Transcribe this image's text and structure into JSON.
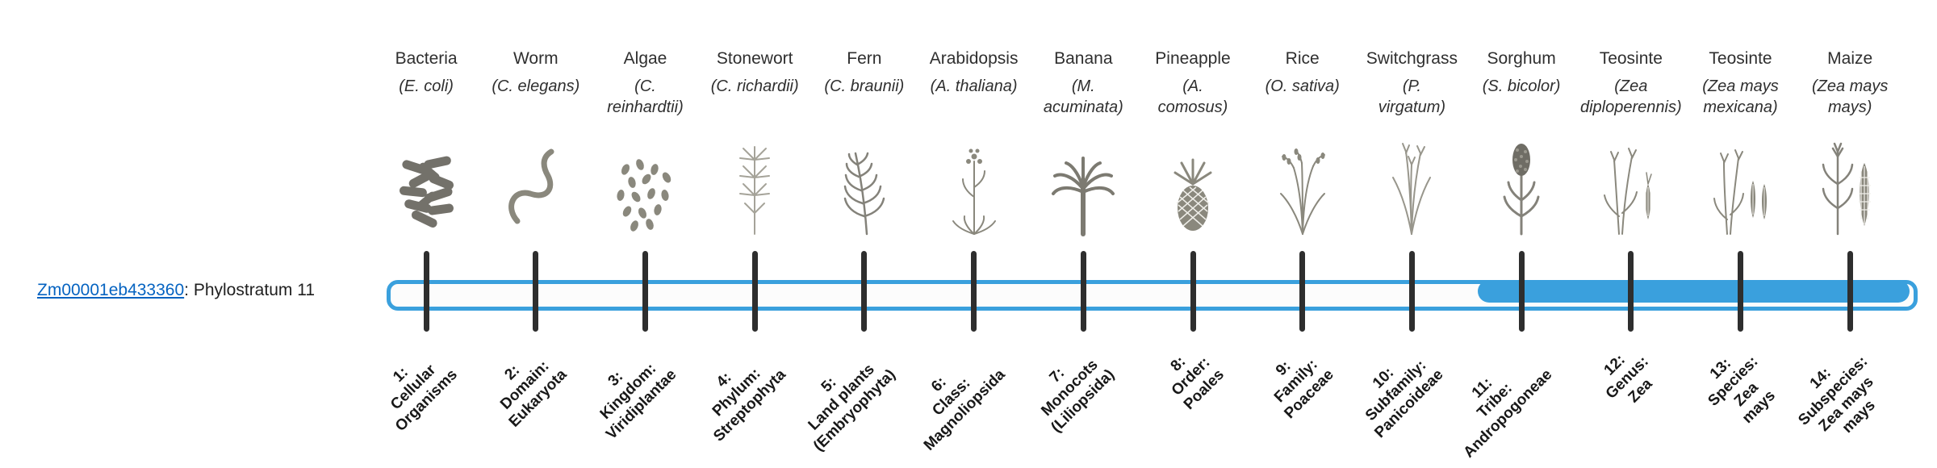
{
  "gene": {
    "id": "Zm00001eb433360",
    "label_suffix": ": Phylostratum 11",
    "phylostratum": 11
  },
  "colors": {
    "bar_blue": "#3aa0dd",
    "link_blue": "#0563c1",
    "tick_dark": "#2e2e2e",
    "text_dark": "#2f2f2f"
  },
  "chart_data": {
    "type": "bar",
    "orientation": "horizontal",
    "title": "Zm00001eb433360: Phylostratum 11",
    "n_strata": 14,
    "gene_phylostratum": 11,
    "filled_strata": [
      11,
      12,
      13,
      14
    ],
    "strata": [
      "1: Cellular Organisms",
      "2: Domain: Eukaryota",
      "3: Kingdom: Viridiplantae",
      "4: Phylum: Streptophyta",
      "5: Land plants (Embryophyta)",
      "6: Class: Magnoliopsida",
      "7: Monocots (Liliopsida)",
      "8: Order: Poales",
      "9: Family: Poaceae",
      "10: Subfamily: Panicoideae",
      "11: Tribe: Andropogoneae",
      "12: Genus: Zea",
      "13: Species: Zea mays",
      "14: Subspecies: Zea mays mays"
    ],
    "species": [
      "Bacteria (E. coli)",
      "Worm (C. elegans)",
      "Algae (C. reinhardtii)",
      "Stonewort (C. richardii)",
      "Fern (C. braunii)",
      "Arabidopsis (A. thaliana)",
      "Banana (M. acuminata)",
      "Pineapple (A. comosus)",
      "Rice (O. sativa)",
      "Switchgrass (P. virgatum)",
      "Sorghum (S. bicolor)",
      "Teosinte (Zea diploperennis)",
      "Teosinte (Zea mays mexicana)",
      "Maize (Zea mays mays)"
    ]
  },
  "columns": [
    {
      "common": "Bacteria",
      "scientific": "(E. coli)",
      "icon": "bacteria-icon",
      "stratum_label": "1:\nCellular\nOrganisms"
    },
    {
      "common": "Worm",
      "scientific": "(C. elegans)",
      "icon": "worm-icon",
      "stratum_label": "2:\nDomain:\nEukaryota"
    },
    {
      "common": "Algae",
      "scientific": "(C.\nreinhardtii)",
      "icon": "algae-icon",
      "stratum_label": "3:\nKingdom:\nViridiplantae"
    },
    {
      "common": "Stonewort",
      "scientific": "(C. richardii)",
      "icon": "stonewort-icon",
      "stratum_label": "4:\nPhylum:\nStreptophyta"
    },
    {
      "common": "Fern",
      "scientific": "(C. braunii)",
      "icon": "fern-icon",
      "stratum_label": "5:\nLand plants\n(Embryophyta)"
    },
    {
      "common": "Arabidopsis",
      "scientific": "(A. thaliana)",
      "icon": "arabidopsis-icon",
      "stratum_label": "6:\nClass:\nMagnoliopsida"
    },
    {
      "common": "Banana",
      "scientific": "(M.\nacuminata)",
      "icon": "banana-icon",
      "stratum_label": "7:\nMonocots\n(Liliopsida)"
    },
    {
      "common": "Pineapple",
      "scientific": "(A.\ncomosus)",
      "icon": "pineapple-icon",
      "stratum_label": "8:\nOrder:\nPoales"
    },
    {
      "common": "Rice",
      "scientific": "(O. sativa)",
      "icon": "rice-icon",
      "stratum_label": "9:\nFamily:\nPoaceae"
    },
    {
      "common": "Switchgrass",
      "scientific": "(P.\nvirgatum)",
      "icon": "switchgrass-icon",
      "stratum_label": "10:\nSubfamily:\nPanicoideae"
    },
    {
      "common": "Sorghum",
      "scientific": "(S. bicolor)",
      "icon": "sorghum-icon",
      "stratum_label": "11:\nTribe:\nAndropogoneae"
    },
    {
      "common": "Teosinte",
      "scientific": "(Zea\ndiploperennis)",
      "icon": "teosinte-diploperennis-icon",
      "stratum_label": "12:\nGenus:\nZea"
    },
    {
      "common": "Teosinte",
      "scientific": "(Zea mays\nmexicana)",
      "icon": "teosinte-mexicana-icon",
      "stratum_label": "13:\nSpecies:\nZea\nmays"
    },
    {
      "common": "Maize",
      "scientific": "(Zea mays\nmays)",
      "icon": "maize-icon",
      "stratum_label": "14:\nSubspecies:\nZea mays\nmays"
    }
  ]
}
